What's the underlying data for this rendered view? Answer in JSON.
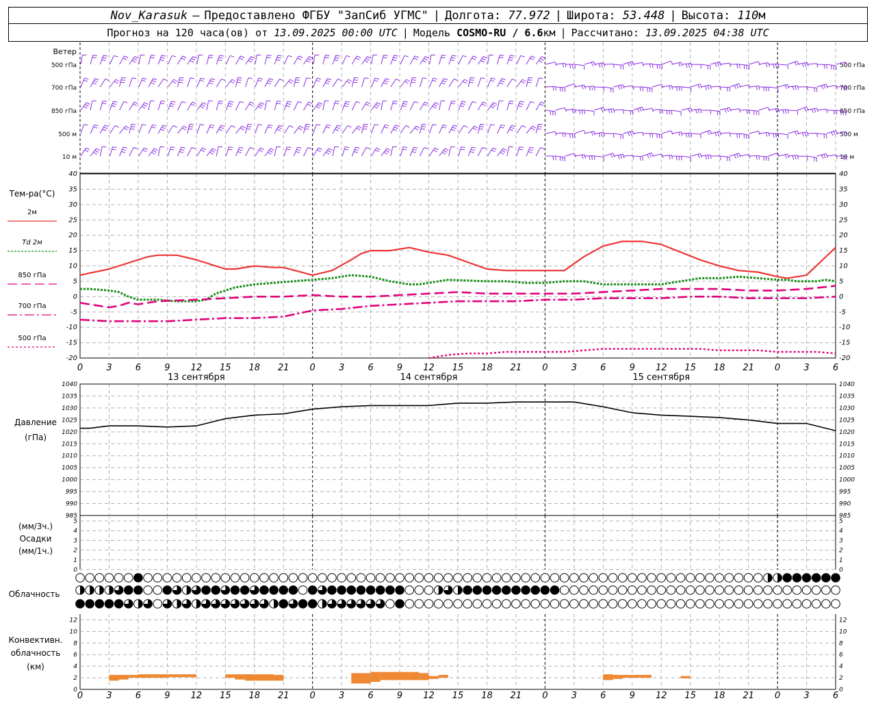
{
  "header": {
    "station": "Nov_Karasuk",
    "dash": "–",
    "provider": "Предоставлено ФГБУ \"ЗапСиб УГМС\"",
    "sep": "|",
    "lon_label": "Долгота:",
    "lon_value": "77.972",
    "lat_label": "Широта:",
    "lat_value": "53.448",
    "alt_label": "Высота:",
    "alt_value": "110",
    "alt_unit": "м",
    "forecast_label": "Прогноз на 120 часа(ов) от",
    "init_time": "13.09.2025 00:00 UTC",
    "model_label": "Модель",
    "model_name": "COSMO-RU / 6.6",
    "model_unit": "км",
    "calc_label": "Рассчитано:",
    "calc_time": "13.09.2025 04:38 UTC"
  },
  "colors": {
    "wind": "#8a2be2",
    "t2m": "#ee3333",
    "td2m": "#138c13",
    "t850": "#e0007a",
    "t700": "#e0007a",
    "t500": "#e0007a",
    "pressure": "#000000",
    "conv": "#ee8833",
    "grid": "#b0b0b0"
  },
  "chart_data": [
    {
      "type": "wind-barbs",
      "panel_title": "Ветер",
      "levels": [
        "500 гПа",
        "700 гПа",
        "850 гПа",
        "500 м",
        "10  м"
      ],
      "x_unit": "hours since 13.09.2025 00:00 UTC",
      "x_range": [
        0,
        78
      ],
      "note": "barbs plotted every hour at each level"
    },
    {
      "type": "line",
      "panel_title": "Тем-ра(°C)",
      "x_ticks": [
        "0",
        "3",
        "6",
        "9",
        "12",
        "15",
        "18",
        "21",
        "0",
        "3",
        "6",
        "9",
        "12",
        "15",
        "18",
        "21",
        "0",
        "3",
        "6",
        "9",
        "12",
        "15",
        "18",
        "21",
        "0",
        "3",
        "6"
      ],
      "date_labels": [
        "13 сентября",
        "14 сентября",
        "15 сентября"
      ],
      "y_ticks": [
        40,
        35,
        30,
        25,
        20,
        15,
        10,
        5,
        0,
        -5,
        -10,
        -15,
        -20
      ],
      "ylim": [
        -20,
        40
      ],
      "series": [
        {
          "name": "2м",
          "key": "t2m",
          "dash": "",
          "x": [
            0,
            3,
            4,
            5,
            6,
            7,
            8,
            10,
            12,
            14,
            15,
            16,
            18,
            20,
            21,
            24,
            26,
            28,
            29,
            30,
            32,
            34,
            36,
            38,
            42,
            44,
            48,
            50,
            52,
            54,
            56,
            58,
            60,
            64,
            66,
            68,
            70,
            72,
            73,
            75,
            78
          ],
          "y": [
            7,
            9,
            10,
            11,
            12,
            13,
            13.5,
            13.5,
            12,
            10,
            9,
            9,
            10,
            9.5,
            9.5,
            7,
            8.5,
            12,
            14,
            15,
            15,
            16,
            14.5,
            13.5,
            9,
            8.5,
            8.5,
            8.5,
            13,
            16.5,
            18,
            18,
            17,
            12,
            10,
            8.5,
            8,
            6.5,
            6,
            7,
            16
          ]
        },
        {
          "name": "Td  2м",
          "key": "td2m",
          "dash": "3,2",
          "x": [
            0,
            1,
            3,
            4,
            5,
            6,
            8,
            10,
            12,
            13,
            14,
            16,
            18,
            20,
            22,
            24,
            26,
            28,
            30,
            32,
            34,
            35,
            36,
            38,
            42,
            44,
            46,
            48,
            50,
            52,
            54,
            56,
            60,
            62,
            64,
            66,
            68,
            70,
            72,
            73,
            74,
            76,
            77,
            78
          ],
          "y": [
            2.5,
            2.5,
            2,
            1.5,
            0,
            -1,
            -1,
            -1.5,
            -1.5,
            -1,
            1,
            3,
            4,
            4.5,
            5,
            5.5,
            6,
            7,
            6.5,
            5,
            4,
            4,
            4.5,
            5.5,
            5,
            5,
            4.5,
            4.5,
            5,
            5,
            4,
            4,
            4,
            5,
            6,
            6,
            6.5,
            6,
            5.5,
            5.5,
            5,
            5,
            5.5,
            5
          ]
        },
        {
          "name": "850 гПа",
          "key": "t850",
          "dash": "14,6",
          "x": [
            0,
            2,
            3,
            4,
            5,
            6,
            8,
            12,
            15,
            18,
            21,
            24,
            27,
            30,
            33,
            36,
            39,
            42,
            45,
            48,
            51,
            54,
            57,
            60,
            63,
            66,
            69,
            72,
            75,
            78
          ],
          "y": [
            -2,
            -3,
            -3.5,
            -3,
            -2,
            -2.5,
            -1.5,
            -1,
            -0.5,
            0,
            0,
            0.5,
            0,
            0,
            0.5,
            1,
            1.5,
            1,
            1,
            1,
            1,
            1.5,
            2,
            2.5,
            2.5,
            2.5,
            2,
            2,
            2.5,
            3.5
          ]
        },
        {
          "name": "700 гПа",
          "key": "t700",
          "dash": "14,4,3,4",
          "x": [
            0,
            3,
            6,
            9,
            12,
            15,
            18,
            21,
            24,
            27,
            30,
            33,
            36,
            39,
            42,
            45,
            48,
            51,
            54,
            57,
            60,
            63,
            66,
            69,
            72,
            75,
            78
          ],
          "y": [
            -7.5,
            -8,
            -8,
            -8,
            -7.5,
            -7,
            -7,
            -6.5,
            -4.5,
            -4,
            -3,
            -2.5,
            -2,
            -1.5,
            -1.5,
            -1.5,
            -1,
            -1,
            -0.5,
            -0.5,
            -0.5,
            0,
            0,
            -0.5,
            -0.5,
            -0.5,
            0
          ]
        },
        {
          "name": "500 гПа",
          "key": "t500",
          "dash": "3,3",
          "x": [
            36,
            38,
            40,
            42,
            44,
            46,
            48,
            50,
            52,
            54,
            56,
            58,
            60,
            62,
            64,
            66,
            68,
            70,
            72,
            74,
            76,
            78
          ],
          "y": [
            -20,
            -19,
            -18.5,
            -18.5,
            -18,
            -18,
            -18,
            -18,
            -17.5,
            -17,
            -17,
            -17,
            -17,
            -17,
            -17,
            -17.5,
            -17.5,
            -17.5,
            -18,
            -18,
            -18,
            -18.5
          ]
        }
      ]
    },
    {
      "type": "line",
      "panel_title": "Давление",
      "panel_unit": "(гПа)",
      "y_ticks": [
        1040,
        1035,
        1030,
        1025,
        1020,
        1015,
        1010,
        1005,
        1000,
        995,
        990,
        985
      ],
      "ylim": [
        985,
        1040
      ],
      "series": [
        {
          "name": "",
          "key": "pressure",
          "x": [
            0,
            1,
            3,
            6,
            9,
            12,
            15,
            18,
            21,
            24,
            27,
            30,
            33,
            36,
            39,
            42,
            45,
            48,
            51,
            54,
            57,
            60,
            63,
            66,
            69,
            72,
            75,
            78
          ],
          "y": [
            1021.5,
            1021.5,
            1022.5,
            1022.5,
            1022,
            1022.5,
            1025.5,
            1027,
            1027.5,
            1029.5,
            1030.5,
            1031,
            1031,
            1031,
            1032,
            1032,
            1032.5,
            1032.5,
            1032.5,
            1030.5,
            1028,
            1027,
            1026.5,
            1026,
            1025,
            1023.5,
            1023.5,
            1020.5
          ]
        }
      ]
    },
    {
      "type": "bar",
      "panel_title": "Осадки",
      "panel_unit_top": "(мм/3ч.)",
      "panel_unit_bottom": "(мм/1ч.)",
      "y_ticks": [
        5,
        4,
        3,
        2,
        1,
        0
      ],
      "ylim": [
        0,
        5
      ],
      "values": []
    },
    {
      "type": "table",
      "panel_title": "Облачность",
      "note": "cloud cover symbols per hour; 0 = clear circle, 1 = quarter, 2 = half, 3 = three quarters, 4 = overcast",
      "rows": [
        "0000004000000000000000000000000000000000000000000000000000000000000000022444444",
        "2222344004323443443444404344444444000232444444444400000000000000000000000000000",
        "4444432303232333333324344233333304000000000000000000000000000000000000000000000"
      ]
    },
    {
      "type": "bar",
      "panel_title": "Конвективн.",
      "panel_title2": "облачность",
      "panel_unit": "(км)",
      "y_ticks": [
        12,
        10,
        8,
        6,
        4,
        2,
        0
      ],
      "ylim": [
        0,
        13
      ],
      "segments": [
        {
          "x": 3.5,
          "base": 1.5,
          "top": 2.5
        },
        {
          "x": 4.5,
          "base": 1.7,
          "top": 2.5
        },
        {
          "x": 5.5,
          "base": 2,
          "top": 2.5
        },
        {
          "x": 6.5,
          "base": 2,
          "top": 2.6
        },
        {
          "x": 7.5,
          "base": 2,
          "top": 2.6
        },
        {
          "x": 8.5,
          "base": 2,
          "top": 2.6
        },
        {
          "x": 9.5,
          "base": 2.1,
          "top": 2.6
        },
        {
          "x": 10.5,
          "base": 2.1,
          "top": 2.6
        },
        {
          "x": 11.5,
          "base": 2.1,
          "top": 2.6
        },
        {
          "x": 15.5,
          "base": 2,
          "top": 2.6
        },
        {
          "x": 16.5,
          "base": 1.7,
          "top": 2.6
        },
        {
          "x": 17.5,
          "base": 1.5,
          "top": 2.6
        },
        {
          "x": 18.5,
          "base": 1.5,
          "top": 2.6
        },
        {
          "x": 19.5,
          "base": 1.5,
          "top": 2.6
        },
        {
          "x": 20.5,
          "base": 1.5,
          "top": 2.5
        },
        {
          "x": 28.5,
          "base": 1,
          "top": 2.8
        },
        {
          "x": 29.5,
          "base": 1,
          "top": 2.8
        },
        {
          "x": 30.5,
          "base": 1.3,
          "top": 3
        },
        {
          "x": 31.5,
          "base": 1.6,
          "top": 3
        },
        {
          "x": 32.5,
          "base": 1.6,
          "top": 3
        },
        {
          "x": 33.5,
          "base": 1.6,
          "top": 3
        },
        {
          "x": 34.5,
          "base": 1.6,
          "top": 3
        },
        {
          "x": 35.5,
          "base": 1.6,
          "top": 2.8
        },
        {
          "x": 36.5,
          "base": 1.8,
          "top": 2.3
        },
        {
          "x": 37.5,
          "base": 2,
          "top": 2.5
        },
        {
          "x": 54.5,
          "base": 1.6,
          "top": 2.6
        },
        {
          "x": 55.5,
          "base": 1.8,
          "top": 2.5
        },
        {
          "x": 56.5,
          "base": 2,
          "top": 2.5
        },
        {
          "x": 57.5,
          "base": 2,
          "top": 2.5
        },
        {
          "x": 58.5,
          "base": 2,
          "top": 2.5
        },
        {
          "x": 62.5,
          "base": 1.9,
          "top": 2.3
        }
      ]
    }
  ]
}
